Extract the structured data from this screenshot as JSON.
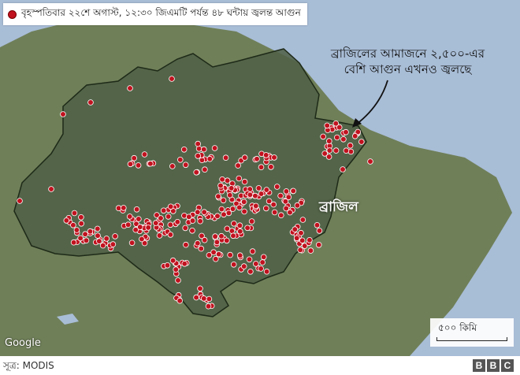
{
  "legend": {
    "label": "বৃহস্পতিবার ২২শে অগাস্ট, ১২:৩০ জিএমটি পর্যন্ত ৪৮ ঘন্টায় জ্বলন্ত আগুন",
    "marker_color": "#c1121f"
  },
  "callout": {
    "line1": "ব্রাজিলের আমাজনে ২,৫০০-এর",
    "line2": "বেশি আগুন এখনও জ্বলছে"
  },
  "labels": {
    "country": "ব্রাজিল",
    "google": "Google",
    "scale": "৫০০ কিমি"
  },
  "footer": {
    "source": "সূত্র: MODIS",
    "brand": [
      "B",
      "B",
      "C"
    ]
  },
  "colors": {
    "ocean": "#a8bdd6",
    "land": "#6f7f58",
    "region": "#4f5f45",
    "fire": "#c1121f"
  }
}
